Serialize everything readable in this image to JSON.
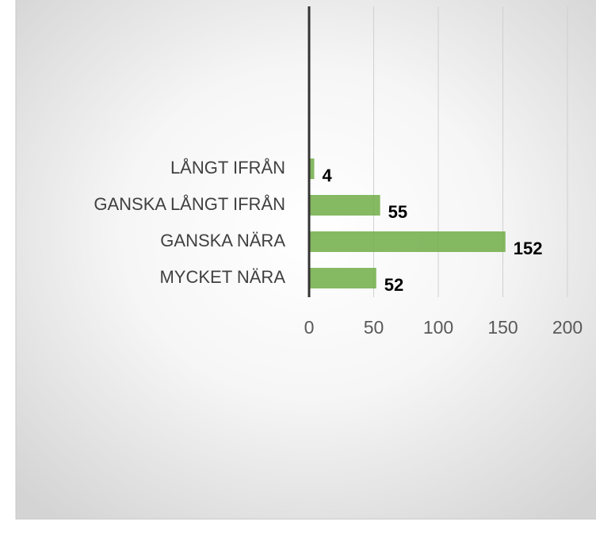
{
  "chart_data": {
    "type": "bar",
    "orientation": "horizontal",
    "categories": [
      "LÅNGT IFRÅN",
      "GANSKA LÅNGT IFRÅN",
      "GANSKA NÄRA",
      "MYCKET NÄRA"
    ],
    "values": [
      4,
      55,
      152,
      52
    ],
    "color": "#70ad47",
    "xlim": [
      0,
      200
    ],
    "xticks": [
      0,
      50,
      100,
      150,
      200
    ],
    "grid": true
  }
}
